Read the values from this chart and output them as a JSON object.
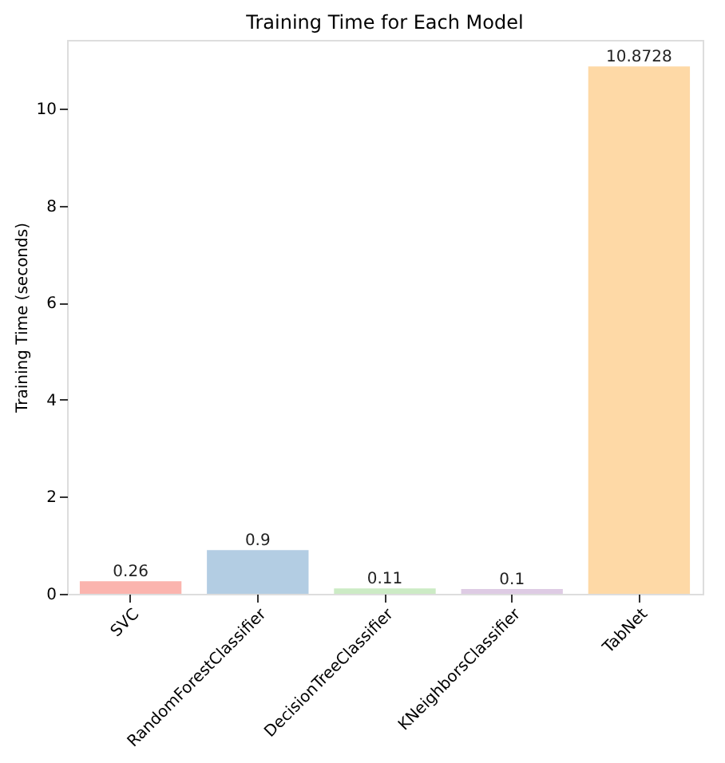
{
  "chart_data": {
    "type": "bar",
    "title": "Training Time for Each Model",
    "ylabel": "Training Time (seconds)",
    "categories": [
      "SVC",
      "RandomForestClassifier",
      "DecisionTreeClassifier",
      "KNeighborsClassifier",
      "TabNet"
    ],
    "values": [
      0.26,
      0.9,
      0.11,
      0.1,
      10.8728
    ],
    "colors": [
      "#fbb4ae",
      "#b3cde3",
      "#ccebc5",
      "#decbe4",
      "#fed9a6"
    ],
    "ylim": [
      0,
      11.42
    ],
    "yticks": [
      0,
      2,
      4,
      6,
      8,
      10
    ],
    "grid": false,
    "data_labels": true
  }
}
